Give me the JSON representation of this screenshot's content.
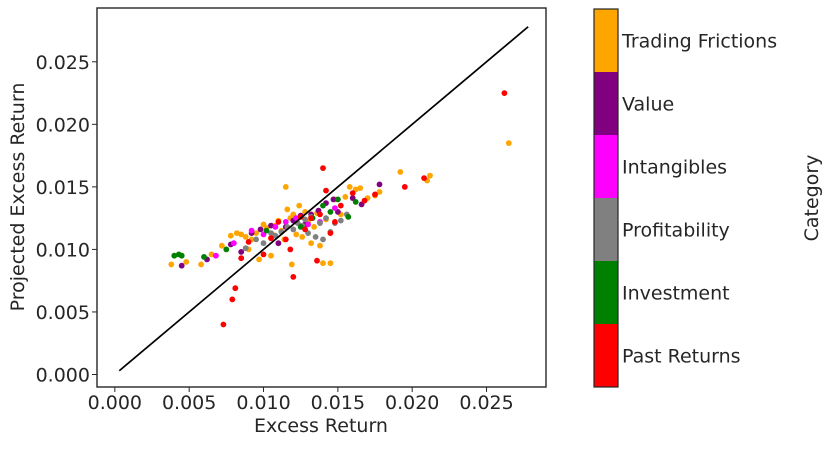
{
  "chart_data": {
    "type": "scatter",
    "xlabel": "Excess Return",
    "ylabel": "Projected Excess Return",
    "xlim": [
      -0.0012,
      0.029
    ],
    "ylim": [
      -0.001,
      0.0293
    ],
    "xticks": [
      0.0,
      0.005,
      0.01,
      0.015,
      0.02,
      0.025
    ],
    "xtick_labels": [
      "0.000",
      "0.005",
      "0.010",
      "0.015",
      "0.020",
      "0.025"
    ],
    "yticks": [
      0.0,
      0.005,
      0.01,
      0.015,
      0.02,
      0.025
    ],
    "ytick_labels": [
      "0.000",
      "0.005",
      "0.010",
      "0.015",
      "0.020",
      "0.025"
    ],
    "grid": false,
    "reference_line": {
      "x": [
        0.0003,
        0.0278
      ],
      "y": [
        0.0003,
        0.0278
      ],
      "color": "#000000"
    },
    "colorbar": {
      "label": "Category",
      "categories": [
        "Trading Frictions",
        "Value",
        "Intangibles",
        "Profitability",
        "Investment",
        "Past Returns"
      ],
      "colors": [
        "#FFA500",
        "#800080",
        "#FF00FF",
        "#808080",
        "#008000",
        "#FF0000"
      ]
    },
    "series": [
      {
        "name": "Trading Frictions",
        "color": "#FFA500",
        "points": [
          [
            0.0038,
            0.0088
          ],
          [
            0.0048,
            0.009
          ],
          [
            0.0058,
            0.0088
          ],
          [
            0.0065,
            0.0096
          ],
          [
            0.0072,
            0.0103
          ],
          [
            0.0078,
            0.0111
          ],
          [
            0.0082,
            0.0113
          ],
          [
            0.0085,
            0.0112
          ],
          [
            0.0088,
            0.011
          ],
          [
            0.009,
            0.01
          ],
          [
            0.0092,
            0.0108
          ],
          [
            0.0095,
            0.0113
          ],
          [
            0.0097,
            0.0092
          ],
          [
            0.01,
            0.012
          ],
          [
            0.0102,
            0.0117
          ],
          [
            0.0105,
            0.0095
          ],
          [
            0.0106,
            0.0112
          ],
          [
            0.0108,
            0.0119
          ],
          [
            0.011,
            0.0123
          ],
          [
            0.0112,
            0.0115
          ],
          [
            0.0114,
            0.0108
          ],
          [
            0.0115,
            0.015
          ],
          [
            0.0116,
            0.0132
          ],
          [
            0.0118,
            0.0125
          ],
          [
            0.0119,
            0.0088
          ],
          [
            0.012,
            0.0128
          ],
          [
            0.0122,
            0.0112
          ],
          [
            0.0124,
            0.0135
          ],
          [
            0.0126,
            0.011
          ],
          [
            0.0128,
            0.013
          ],
          [
            0.013,
            0.0122
          ],
          [
            0.0132,
            0.0105
          ],
          [
            0.0134,
            0.0118
          ],
          [
            0.0136,
            0.0129
          ],
          [
            0.0138,
            0.0103
          ],
          [
            0.014,
            0.0089
          ],
          [
            0.0142,
            0.0124
          ],
          [
            0.0145,
            0.0089
          ],
          [
            0.0148,
            0.014
          ],
          [
            0.0152,
            0.0128
          ],
          [
            0.0155,
            0.0142
          ],
          [
            0.0158,
            0.015
          ],
          [
            0.0162,
            0.0148
          ],
          [
            0.0165,
            0.0149
          ],
          [
            0.017,
            0.0141
          ],
          [
            0.0175,
            0.0143
          ],
          [
            0.0178,
            0.0146
          ],
          [
            0.0192,
            0.0162
          ],
          [
            0.0212,
            0.0159
          ],
          [
            0.021,
            0.0155
          ],
          [
            0.0265,
            0.0185
          ]
        ]
      },
      {
        "name": "Value",
        "color": "#800080",
        "points": [
          [
            0.0045,
            0.0087
          ],
          [
            0.0062,
            0.0092
          ],
          [
            0.0078,
            0.0104
          ],
          [
            0.0085,
            0.0098
          ],
          [
            0.0092,
            0.0113
          ],
          [
            0.0098,
            0.0116
          ],
          [
            0.0105,
            0.0119
          ],
          [
            0.011,
            0.0105
          ],
          [
            0.0115,
            0.0118
          ],
          [
            0.012,
            0.0123
          ],
          [
            0.0125,
            0.0127
          ],
          [
            0.0128,
            0.012
          ],
          [
            0.0132,
            0.0128
          ],
          [
            0.0137,
            0.0131
          ],
          [
            0.0142,
            0.0137
          ],
          [
            0.0147,
            0.014
          ],
          [
            0.015,
            0.013
          ],
          [
            0.016,
            0.0141
          ],
          [
            0.0166,
            0.0136
          ],
          [
            0.0178,
            0.0152
          ]
        ]
      },
      {
        "name": "Intangibles",
        "color": "#FF00FF",
        "points": [
          [
            0.0068,
            0.0095
          ],
          [
            0.008,
            0.0105
          ],
          [
            0.0092,
            0.0115
          ],
          [
            0.01,
            0.0112
          ],
          [
            0.0108,
            0.0118
          ],
          [
            0.0115,
            0.0122
          ],
          [
            0.0122,
            0.0125
          ],
          [
            0.013,
            0.012
          ],
          [
            0.0138,
            0.0122
          ],
          [
            0.0148,
            0.0133
          ]
        ]
      },
      {
        "name": "Profitability",
        "color": "#808080",
        "points": [
          [
            0.0088,
            0.0101
          ],
          [
            0.0095,
            0.0108
          ],
          [
            0.01,
            0.0105
          ],
          [
            0.0105,
            0.0113
          ],
          [
            0.0108,
            0.0111
          ],
          [
            0.0112,
            0.0114
          ],
          [
            0.0116,
            0.0118
          ],
          [
            0.012,
            0.0116
          ],
          [
            0.0123,
            0.0121
          ],
          [
            0.0126,
            0.0119
          ],
          [
            0.0128,
            0.0124
          ],
          [
            0.013,
            0.0113
          ],
          [
            0.0132,
            0.0126
          ],
          [
            0.0135,
            0.011
          ],
          [
            0.0138,
            0.0121
          ],
          [
            0.014,
            0.0108
          ],
          [
            0.0142,
            0.0125
          ],
          [
            0.0145,
            0.0114
          ],
          [
            0.0148,
            0.0121
          ],
          [
            0.0152,
            0.0123
          ],
          [
            0.0156,
            0.0128
          ]
        ]
      },
      {
        "name": "Investment",
        "color": "#008000",
        "points": [
          [
            0.004,
            0.0095
          ],
          [
            0.0043,
            0.0096
          ],
          [
            0.0045,
            0.0095
          ],
          [
            0.006,
            0.0094
          ],
          [
            0.0075,
            0.01
          ],
          [
            0.0102,
            0.0115
          ],
          [
            0.0125,
            0.0118
          ],
          [
            0.0133,
            0.0125
          ],
          [
            0.014,
            0.0135
          ],
          [
            0.0145,
            0.013
          ],
          [
            0.015,
            0.014
          ],
          [
            0.0157,
            0.0126
          ],
          [
            0.0162,
            0.0138
          ]
        ]
      },
      {
        "name": "Past Returns",
        "color": "#FF0000",
        "points": [
          [
            0.0073,
            0.004
          ],
          [
            0.0079,
            0.006
          ],
          [
            0.0081,
            0.0069
          ],
          [
            0.0085,
            0.0093
          ],
          [
            0.009,
            0.0106
          ],
          [
            0.01,
            0.0096
          ],
          [
            0.0105,
            0.0109
          ],
          [
            0.011,
            0.0122
          ],
          [
            0.0115,
            0.0108
          ],
          [
            0.0118,
            0.01
          ],
          [
            0.012,
            0.0078
          ],
          [
            0.0125,
            0.0126
          ],
          [
            0.0128,
            0.0116
          ],
          [
            0.0132,
            0.0125
          ],
          [
            0.0136,
            0.0091
          ],
          [
            0.0138,
            0.0128
          ],
          [
            0.014,
            0.0165
          ],
          [
            0.0142,
            0.0147
          ],
          [
            0.0145,
            0.0113
          ],
          [
            0.0148,
            0.0122
          ],
          [
            0.0152,
            0.0135
          ],
          [
            0.016,
            0.0145
          ],
          [
            0.0168,
            0.0139
          ],
          [
            0.0175,
            0.0144
          ],
          [
            0.0195,
            0.015
          ],
          [
            0.0208,
            0.0157
          ],
          [
            0.0262,
            0.0225
          ]
        ]
      }
    ]
  }
}
